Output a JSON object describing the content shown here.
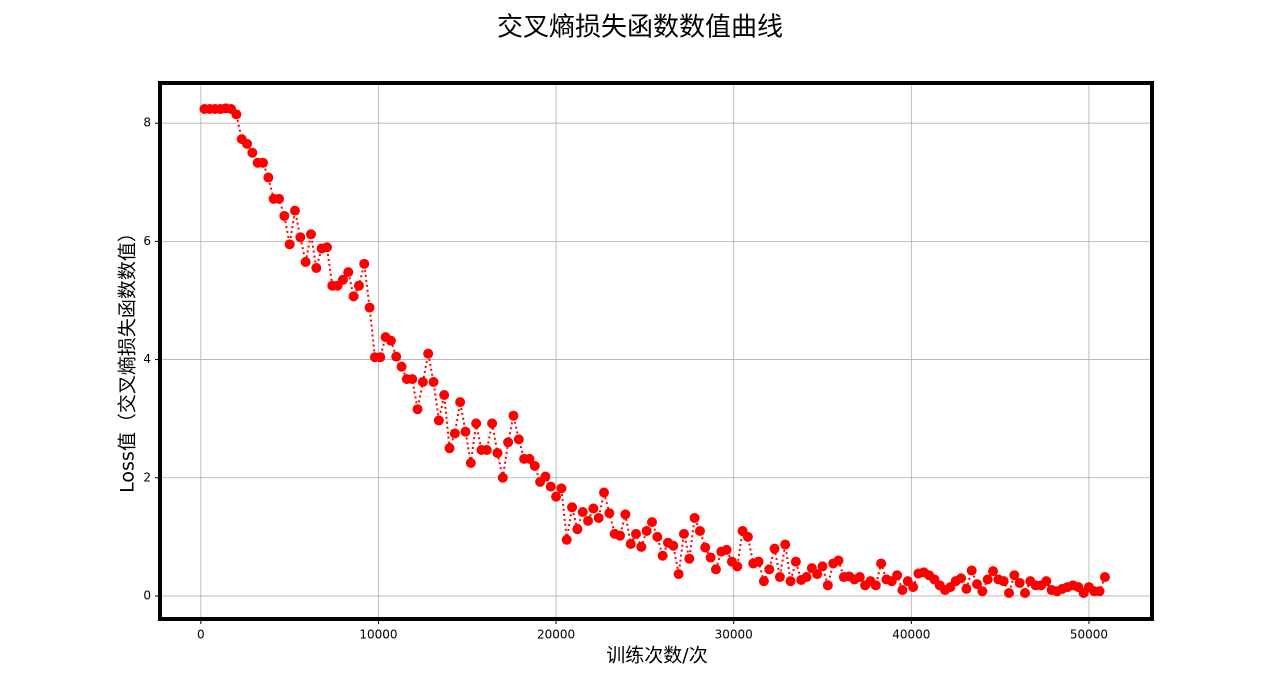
{
  "chart_data": {
    "type": "line",
    "title": "交叉熵损失函数数值曲线",
    "xlabel": "训练次数/次",
    "ylabel": "Loss值（交叉熵损失函数数值）",
    "x": [
      200,
      500,
      800,
      1100,
      1400,
      1700,
      2000,
      2300,
      2600,
      2900,
      3200,
      3500,
      3800,
      4100,
      4400,
      4700,
      5000,
      5300,
      5600,
      5900,
      6200,
      6500,
      6800,
      7100,
      7400,
      7700,
      8000,
      8300,
      8600,
      8900,
      9200,
      9500,
      9800,
      10100,
      10400,
      10700,
      11000,
      11300,
      11600,
      11900,
      12200,
      12500,
      12800,
      13100,
      13400,
      13700,
      14000,
      14300,
      14600,
      14900,
      15200,
      15500,
      15800,
      16100,
      16400,
      16700,
      17000,
      17300,
      17600,
      17900,
      18200,
      18500,
      18800,
      19100,
      19400,
      19700,
      20000,
      20300,
      20600,
      20900,
      21200,
      21500,
      21800,
      22100,
      22400,
      22700,
      23000,
      23300,
      23600,
      23900,
      24200,
      24500,
      24800,
      25100,
      25400,
      25700,
      26000,
      26300,
      26600,
      26900,
      27200,
      27500,
      27800,
      28100,
      28400,
      28700,
      29000,
      29300,
      29600,
      29900,
      30200,
      30500,
      30800,
      31100,
      31400,
      31700,
      32000,
      32300,
      32600,
      32900,
      33200,
      33500,
      33800,
      34100,
      34400,
      34700,
      35000,
      35300,
      35600,
      35900,
      36200,
      36500,
      36800,
      37100,
      37400,
      37700,
      38000,
      38300,
      38600,
      38900,
      39200,
      39500,
      39800,
      40100,
      40400,
      40700,
      41000,
      41300,
      41600,
      41900,
      42200,
      42500,
      42800,
      43100,
      43400,
      43700,
      44000,
      44300,
      44600,
      44900,
      45200,
      45500,
      45800,
      46100,
      46400,
      46700,
      47000,
      47300,
      47600,
      47900,
      48200,
      48500,
      48800,
      49100,
      49400,
      49700,
      50000,
      50300,
      50600,
      50900
    ],
    "series": [
      {
        "name": "loss",
        "color": "#ff0000",
        "values": [
          8.24,
          8.24,
          8.24,
          8.24,
          8.25,
          8.24,
          8.15,
          7.73,
          7.65,
          7.5,
          7.33,
          7.33,
          7.08,
          6.72,
          6.72,
          6.43,
          5.95,
          6.52,
          6.07,
          5.65,
          6.12,
          5.55,
          5.88,
          5.9,
          5.25,
          5.25,
          5.35,
          5.48,
          5.07,
          5.25,
          5.62,
          4.88,
          4.04,
          4.04,
          4.38,
          4.32,
          4.05,
          3.88,
          3.67,
          3.67,
          3.16,
          3.62,
          4.1,
          3.62,
          2.97,
          3.4,
          2.5,
          2.75,
          3.28,
          2.78,
          2.25,
          2.92,
          2.47,
          2.47,
          2.92,
          2.42,
          2.0,
          2.6,
          3.05,
          2.65,
          2.32,
          2.32,
          2.2,
          1.93,
          2.02,
          1.85,
          1.68,
          1.82,
          0.95,
          1.5,
          1.13,
          1.42,
          1.27,
          1.48,
          1.32,
          1.75,
          1.4,
          1.05,
          1.02,
          1.38,
          0.88,
          1.05,
          0.83,
          1.1,
          1.25,
          1.0,
          0.68,
          0.9,
          0.85,
          0.37,
          1.05,
          0.63,
          1.32,
          1.1,
          0.82,
          0.65,
          0.45,
          0.75,
          0.78,
          0.58,
          0.5,
          1.1,
          1.0,
          0.55,
          0.58,
          0.25,
          0.45,
          0.8,
          0.32,
          0.87,
          0.25,
          0.58,
          0.27,
          0.32,
          0.47,
          0.37,
          0.5,
          0.18,
          0.55,
          0.6,
          0.32,
          0.33,
          0.28,
          0.32,
          0.18,
          0.25,
          0.18,
          0.55,
          0.28,
          0.25,
          0.35,
          0.1,
          0.25,
          0.15,
          0.38,
          0.4,
          0.35,
          0.28,
          0.18,
          0.1,
          0.15,
          0.25,
          0.3,
          0.12,
          0.43,
          0.2,
          0.08,
          0.28,
          0.42,
          0.28,
          0.25,
          0.05,
          0.35,
          0.22,
          0.05,
          0.25,
          0.18,
          0.18,
          0.25,
          0.1,
          0.08,
          0.12,
          0.15,
          0.18,
          0.15,
          0.05,
          0.15,
          0.08,
          0.08,
          0.32
        ]
      }
    ],
    "xlim": [
      -2300,
      53550
    ],
    "ylim": [
      -0.39,
      8.68
    ],
    "xticks": [
      0,
      10000,
      20000,
      30000,
      40000,
      50000
    ],
    "yticks": [
      0,
      2,
      4,
      6,
      8
    ],
    "grid": true
  }
}
